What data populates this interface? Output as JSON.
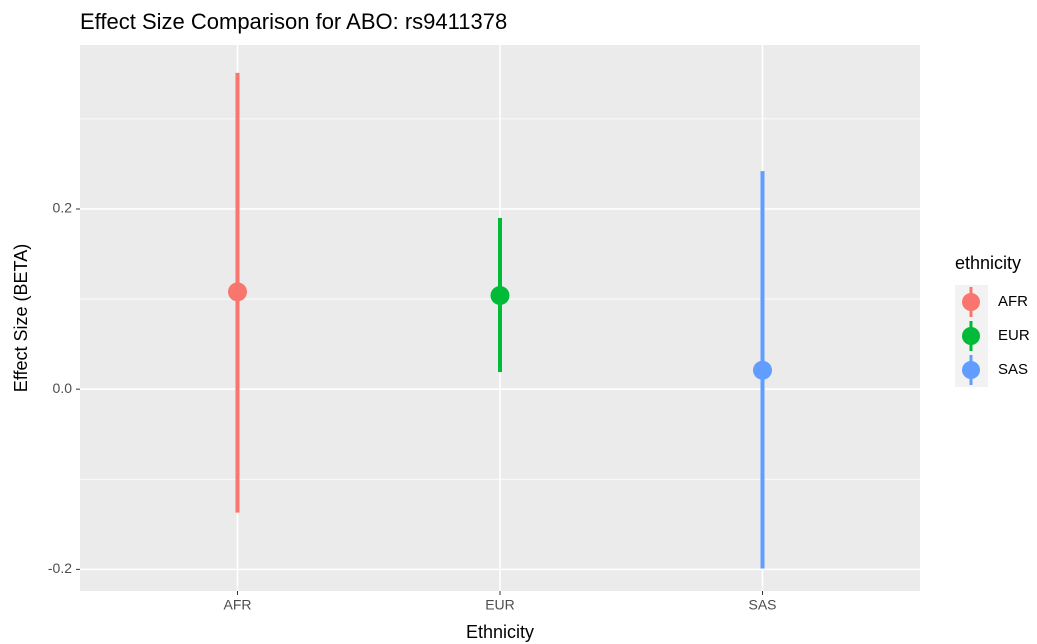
{
  "chart_data": {
    "type": "pointrange",
    "title": "Effect Size Comparison for ABO: rs9411378",
    "x_label": "Ethnicity",
    "y_label": "Effect Size (BETA)",
    "legend_title": "ethnicity",
    "categories": [
      "AFR",
      "EUR",
      "SAS"
    ],
    "series": [
      {
        "name": "AFR",
        "color": "#f8766d",
        "values": [
          0.108,
          null,
          null
        ],
        "lower": [
          -0.137,
          null,
          null
        ],
        "upper": [
          0.351,
          null,
          null
        ]
      },
      {
        "name": "EUR",
        "color": "#00ba38",
        "values": [
          null,
          0.104,
          null
        ],
        "lower": [
          null,
          0.019,
          null
        ],
        "upper": [
          null,
          0.19,
          null
        ]
      },
      {
        "name": "SAS",
        "color": "#619cff",
        "values": [
          null,
          null,
          0.021
        ],
        "lower": [
          null,
          null,
          -0.199
        ],
        "upper": [
          null,
          null,
          0.242
        ]
      }
    ],
    "ylim": [
      -0.224,
      0.382
    ],
    "yticks": [
      {
        "value": -0.2,
        "label": "-0.2"
      },
      {
        "value": 0,
        "label": "0.0"
      },
      {
        "value": 0.2,
        "label": "0.2"
      }
    ],
    "y_minor_ticks": [
      -0.1,
      0.1,
      0.3
    ],
    "grid": true
  }
}
